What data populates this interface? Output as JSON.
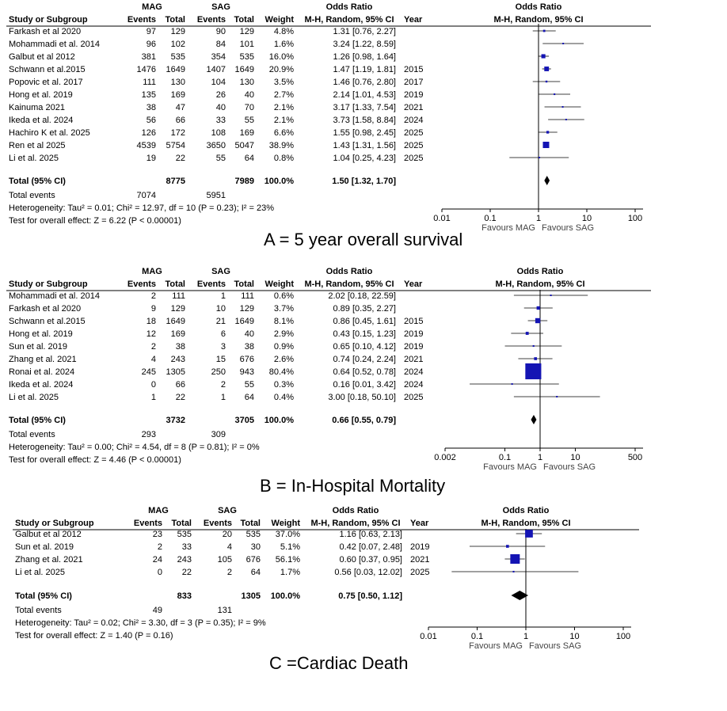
{
  "labels": {
    "mag": "MAG",
    "sag": "SAG",
    "or_head": "Odds Ratio",
    "study": "Study or Subgroup",
    "events": "Events",
    "total": "Total",
    "weight": "Weight",
    "method": "M-H, Random, 95% CI",
    "year": "Year",
    "total_ci": "Total (95% CI)",
    "total_events": "Total events",
    "fav_left": "Favours MAG",
    "fav_right": "Favours SAG"
  },
  "chart_data": [
    {
      "type": "forest",
      "panel": "A",
      "caption": "A = 5 year overall survival",
      "axis_ticks": [
        0.01,
        0.1,
        1,
        10,
        100
      ],
      "axis_tick_labels": [
        "0.01",
        "0.1",
        "1",
        "10",
        "100"
      ],
      "xlim": [
        0.01,
        100
      ],
      "studies": [
        {
          "name": "Farkash et al 2020",
          "e1": "97",
          "n1": "129",
          "e2": "90",
          "n2": "129",
          "weight": "4.8%",
          "or": 1.31,
          "lo": 0.76,
          "hi": 2.27,
          "ci_text": "1.31 [0.76, 2.27]",
          "year": ""
        },
        {
          "name": "Mohammadi et al. 2014",
          "e1": "96",
          "n1": "102",
          "e2": "84",
          "n2": "101",
          "weight": "1.6%",
          "or": 3.24,
          "lo": 1.22,
          "hi": 8.59,
          "ci_text": "3.24 [1.22, 8.59]",
          "year": ""
        },
        {
          "name": "Galbut et al 2012",
          "e1": "381",
          "n1": "535",
          "e2": "354",
          "n2": "535",
          "weight": "16.0%",
          "or": 1.26,
          "lo": 0.98,
          "hi": 1.64,
          "ci_text": "1.26 [0.98, 1.64]",
          "year": ""
        },
        {
          "name": "Schwann et al.2015",
          "e1": "1476",
          "n1": "1649",
          "e2": "1407",
          "n2": "1649",
          "weight": "20.9%",
          "or": 1.47,
          "lo": 1.19,
          "hi": 1.81,
          "ci_text": "1.47 [1.19, 1.81]",
          "year": "2015"
        },
        {
          "name": "Popovic et al. 2017",
          "e1": "111",
          "n1": "130",
          "e2": "104",
          "n2": "130",
          "weight": "3.5%",
          "or": 1.46,
          "lo": 0.76,
          "hi": 2.8,
          "ci_text": "1.46 [0.76, 2.80]",
          "year": "2017"
        },
        {
          "name": "Hong et al. 2019",
          "e1": "135",
          "n1": "169",
          "e2": "26",
          "n2": "40",
          "weight": "2.7%",
          "or": 2.14,
          "lo": 1.01,
          "hi": 4.53,
          "ci_text": "2.14 [1.01, 4.53]",
          "year": "2019"
        },
        {
          "name": "Kainuma  2021",
          "e1": "38",
          "n1": "47",
          "e2": "40",
          "n2": "70",
          "weight": "2.1%",
          "or": 3.17,
          "lo": 1.33,
          "hi": 7.54,
          "ci_text": "3.17 [1.33, 7.54]",
          "year": "2021"
        },
        {
          "name": "Ikeda et al. 2024",
          "e1": "56",
          "n1": "66",
          "e2": "33",
          "n2": "55",
          "weight": "2.1%",
          "or": 3.73,
          "lo": 1.58,
          "hi": 8.84,
          "ci_text": "3.73 [1.58, 8.84]",
          "year": "2024"
        },
        {
          "name": "Hachiro K et al. 2025",
          "e1": "126",
          "n1": "172",
          "e2": "108",
          "n2": "169",
          "weight": "6.6%",
          "or": 1.55,
          "lo": 0.98,
          "hi": 2.45,
          "ci_text": "1.55 [0.98, 2.45]",
          "year": "2025"
        },
        {
          "name": "Ren et al 2025",
          "e1": "4539",
          "n1": "5754",
          "e2": "3650",
          "n2": "5047",
          "weight": "38.9%",
          "or": 1.43,
          "lo": 1.31,
          "hi": 1.56,
          "ci_text": "1.43 [1.31, 1.56]",
          "year": "2025"
        },
        {
          "name": "Li et al. 2025",
          "e1": "19",
          "n1": "22",
          "e2": "55",
          "n2": "64",
          "weight": "0.8%",
          "or": 1.04,
          "lo": 0.25,
          "hi": 4.23,
          "ci_text": "1.04 [0.25, 4.23]",
          "year": "2025"
        }
      ],
      "total": {
        "n1": "8775",
        "n2": "7989",
        "weight": "100.0%",
        "or": 1.5,
        "lo": 1.32,
        "hi": 1.7,
        "ci_text": "1.50 [1.32, 1.70]"
      },
      "total_events": {
        "e1": "7074",
        "e2": "5951"
      },
      "heterogeneity": "Heterogeneity: Tau² = 0.01; Chi² = 12.97, df = 10 (P = 0.23); I² = 23%",
      "overall_effect": "Test for overall effect: Z = 6.22 (P < 0.00001)"
    },
    {
      "type": "forest",
      "panel": "B",
      "caption": "B = In-Hospital Mortality",
      "axis_ticks": [
        0.002,
        0.1,
        1,
        10,
        500
      ],
      "axis_tick_labels": [
        "0.002",
        "0.1",
        "1",
        "10",
        "500"
      ],
      "xlim": [
        0.002,
        500
      ],
      "studies": [
        {
          "name": "Mohammadi et al. 2014",
          "e1": "2",
          "n1": "111",
          "e2": "1",
          "n2": "111",
          "weight": "0.6%",
          "or": 2.02,
          "lo": 0.18,
          "hi": 22.59,
          "ci_text": "2.02 [0.18, 22.59]",
          "year": ""
        },
        {
          "name": "Farkash et al 2020",
          "e1": "9",
          "n1": "129",
          "e2": "10",
          "n2": "129",
          "weight": "3.7%",
          "or": 0.89,
          "lo": 0.35,
          "hi": 2.27,
          "ci_text": "0.89 [0.35, 2.27]",
          "year": ""
        },
        {
          "name": "Schwann et al.2015",
          "e1": "18",
          "n1": "1649",
          "e2": "21",
          "n2": "1649",
          "weight": "8.1%",
          "or": 0.86,
          "lo": 0.45,
          "hi": 1.61,
          "ci_text": "0.86 [0.45, 1.61]",
          "year": "2015"
        },
        {
          "name": "Hong et al. 2019",
          "e1": "12",
          "n1": "169",
          "e2": "6",
          "n2": "40",
          "weight": "2.9%",
          "or": 0.43,
          "lo": 0.15,
          "hi": 1.23,
          "ci_text": "0.43 [0.15, 1.23]",
          "year": "2019"
        },
        {
          "name": "Sun et al. 2019",
          "e1": "2",
          "n1": "38",
          "e2": "3",
          "n2": "38",
          "weight": "0.9%",
          "or": 0.65,
          "lo": 0.1,
          "hi": 4.12,
          "ci_text": "0.65 [0.10, 4.12]",
          "year": "2019"
        },
        {
          "name": "Zhang et al. 2021",
          "e1": "4",
          "n1": "243",
          "e2": "15",
          "n2": "676",
          "weight": "2.6%",
          "or": 0.74,
          "lo": 0.24,
          "hi": 2.24,
          "ci_text": "0.74 [0.24, 2.24]",
          "year": "2021"
        },
        {
          "name": "Ronai et al. 2024",
          "e1": "245",
          "n1": "1305",
          "e2": "250",
          "n2": "943",
          "weight": "80.4%",
          "or": 0.64,
          "lo": 0.52,
          "hi": 0.78,
          "ci_text": "0.64 [0.52, 0.78]",
          "year": "2024"
        },
        {
          "name": "Ikeda et al. 2024",
          "e1": "0",
          "n1": "66",
          "e2": "2",
          "n2": "55",
          "weight": "0.3%",
          "or": 0.16,
          "lo": 0.01,
          "hi": 3.42,
          "ci_text": "0.16 [0.01, 3.42]",
          "year": "2024"
        },
        {
          "name": "Li et al. 2025",
          "e1": "1",
          "n1": "22",
          "e2": "1",
          "n2": "64",
          "weight": "0.4%",
          "or": 3.0,
          "lo": 0.18,
          "hi": 50.1,
          "ci_text": "3.00 [0.18, 50.10]",
          "year": "2025"
        }
      ],
      "total": {
        "n1": "3732",
        "n2": "3705",
        "weight": "100.0%",
        "or": 0.66,
        "lo": 0.55,
        "hi": 0.79,
        "ci_text": "0.66 [0.55, 0.79]"
      },
      "total_events": {
        "e1": "293",
        "e2": "309"
      },
      "heterogeneity": "Heterogeneity: Tau² = 0.00; Chi² = 4.54, df = 8 (P = 0.81); I² = 0%",
      "overall_effect": "Test for overall effect: Z = 4.46 (P < 0.00001)"
    },
    {
      "type": "forest",
      "panel": "C",
      "caption": "C =Cardiac Death",
      "axis_ticks": [
        0.01,
        0.1,
        1,
        10,
        100
      ],
      "axis_tick_labels": [
        "0.01",
        "0.1",
        "1",
        "10",
        "100"
      ],
      "xlim": [
        0.01,
        100
      ],
      "studies": [
        {
          "name": "Galbut et al 2012",
          "e1": "23",
          "n1": "535",
          "e2": "20",
          "n2": "535",
          "weight": "37.0%",
          "or": 1.16,
          "lo": 0.63,
          "hi": 2.13,
          "ci_text": "1.16 [0.63, 2.13]",
          "year": ""
        },
        {
          "name": "Sun et al. 2019",
          "e1": "2",
          "n1": "33",
          "e2": "4",
          "n2": "30",
          "weight": "5.1%",
          "or": 0.42,
          "lo": 0.07,
          "hi": 2.48,
          "ci_text": "0.42 [0.07, 2.48]",
          "year": "2019"
        },
        {
          "name": "Zhang et al. 2021",
          "e1": "24",
          "n1": "243",
          "e2": "105",
          "n2": "676",
          "weight": "56.1%",
          "or": 0.6,
          "lo": 0.37,
          "hi": 0.95,
          "ci_text": "0.60 [0.37, 0.95]",
          "year": "2021"
        },
        {
          "name": "Li et al. 2025",
          "e1": "0",
          "n1": "22",
          "e2": "2",
          "n2": "64",
          "weight": "1.7%",
          "or": 0.56,
          "lo": 0.03,
          "hi": 12.02,
          "ci_text": "0.56 [0.03, 12.02]",
          "year": "2025"
        }
      ],
      "total": {
        "n1": "833",
        "n2": "1305",
        "weight": "100.0%",
        "or": 0.75,
        "lo": 0.5,
        "hi": 1.12,
        "ci_text": "0.75 [0.50, 1.12]"
      },
      "total_events": {
        "e1": "49",
        "e2": "131"
      },
      "heterogeneity": "Heterogeneity: Tau² = 0.02; Chi² = 3.30, df = 3 (P = 0.35); I² = 9%",
      "overall_effect": "Test for overall effect: Z = 1.40 (P = 0.16)"
    }
  ]
}
